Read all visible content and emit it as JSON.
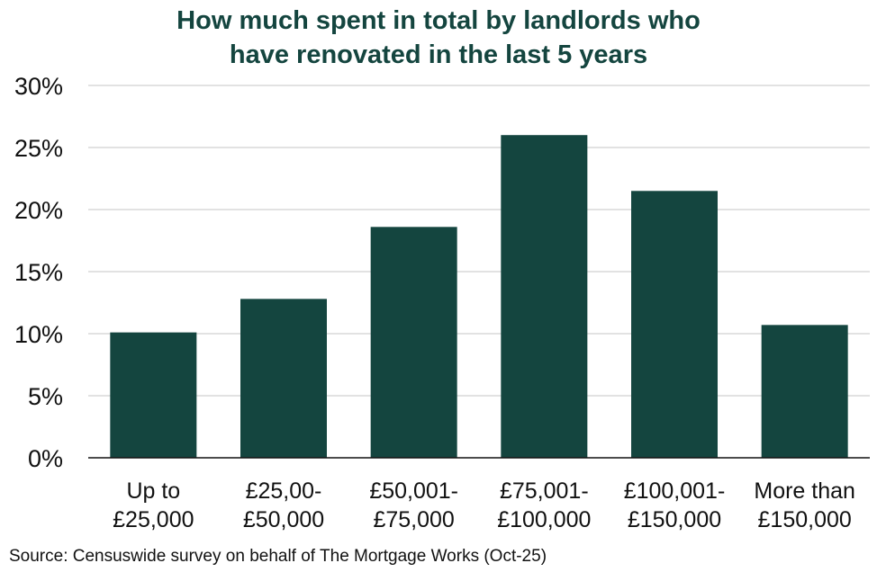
{
  "chart_data": {
    "type": "bar",
    "title_lines": [
      "How much spent in total by landlords who",
      "have renovated in the last 5 years"
    ],
    "categories": [
      [
        "Up to",
        "£25,000"
      ],
      [
        "£25,00-",
        "£50,000"
      ],
      [
        "£50,001-",
        "£75,000"
      ],
      [
        "£75,001-",
        "£100,000"
      ],
      [
        "£100,001-",
        "£150,000"
      ],
      [
        "More than",
        "£150,000"
      ]
    ],
    "values": [
      10.1,
      12.8,
      18.6,
      26.0,
      21.5,
      10.7
    ],
    "yticks": [
      "0%",
      "5%",
      "10%",
      "15%",
      "20%",
      "25%",
      "30%"
    ],
    "ylim": [
      0,
      30
    ],
    "xlabel": "",
    "ylabel": "",
    "grid": true,
    "bar_color": "#14453f",
    "source": "Source: Censuswide survey on behalf of The Mortgage Works (Oct-25)"
  }
}
